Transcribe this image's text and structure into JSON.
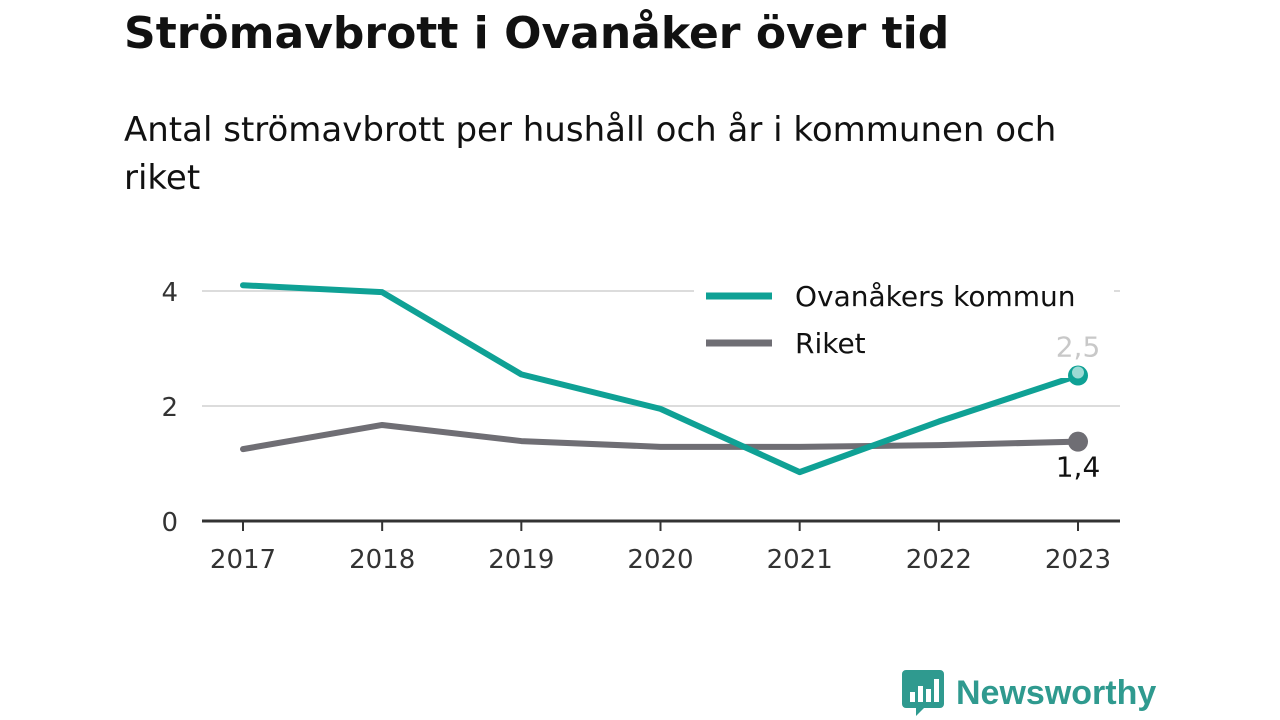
{
  "header": {
    "title": "Strömavbrott i Ovanåker över tid",
    "subtitle": "Antal strömavbrott per hushåll och år i kommunen och riket"
  },
  "brand": {
    "name": "Newsworthy",
    "color": "#2f9a8f"
  },
  "chart_data": {
    "type": "line",
    "title": "Strömavbrott i Ovanåker över tid",
    "subtitle": "Antal strömavbrott per hushåll och år i kommunen och riket",
    "xlabel": "",
    "ylabel": "",
    "x": [
      "2017",
      "2018",
      "2019",
      "2020",
      "2021",
      "2022",
      "2023"
    ],
    "y_ticks": [
      0,
      2,
      4
    ],
    "y_tick_labels": [
      "0",
      "2",
      "4"
    ],
    "ylim": [
      0,
      4.6
    ],
    "grid": true,
    "legend_position": "top-right",
    "series": [
      {
        "name": "Ovanåkers kommun",
        "color": "#0fa195",
        "values": [
          4.1,
          3.98,
          2.55,
          1.95,
          0.85,
          1.73,
          2.53
        ],
        "end_label": "2,5",
        "end_label_color": "#c8c8c8"
      },
      {
        "name": "Riket",
        "color": "#6f6e74",
        "values": [
          1.25,
          1.67,
          1.39,
          1.29,
          1.29,
          1.32,
          1.38
        ],
        "end_label": "1,4",
        "end_label_color": "#111111"
      }
    ]
  }
}
